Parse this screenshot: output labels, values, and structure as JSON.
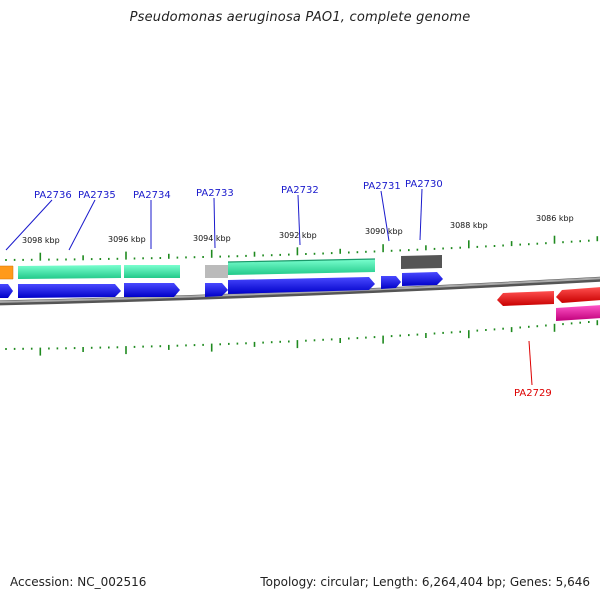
{
  "title": "Pseudomonas aeruginosa PAO1, complete genome",
  "footer": {
    "accession": "Accession: NC_002516",
    "topology": "Topology: circular; Length: 6,264,404 bp; Genes: 5,646"
  },
  "scale_labels": [
    "3098 kbp",
    "3096 kbp",
    "3094 kbp",
    "3092 kbp",
    "3090 kbp",
    "3088 kbp",
    "3086 kbp"
  ],
  "gene_labels_top": [
    "PA2736",
    "PA2735",
    "PA2734",
    "PA2733",
    "PA2732",
    "PA2731",
    "PA2730"
  ],
  "gene_labels_bottom": [
    "PA2729"
  ],
  "colors": {
    "label_forward": "#1a1acc",
    "label_reverse": "#dd0000",
    "tick": "#1f8a1f",
    "backbone": "#888888",
    "cds_blue": "#0a0ae6",
    "cog_teal": "#33e0a0",
    "cog_orange": "#ff9a1a",
    "cog_gray": "#bbbbbb",
    "cog_darkgray": "#555555",
    "cds_red": "#ee0000",
    "cog_magenta": "#e0109a"
  }
}
